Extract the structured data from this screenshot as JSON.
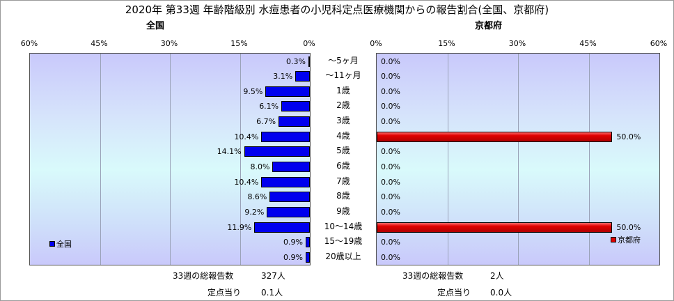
{
  "title": "2020年 第33週 年齢階級別 水痘患者の小児科定点医療機関からの報告割合(全国、京都府)",
  "colors": {
    "national": "#0000ee",
    "kyoto": "#e00000"
  },
  "chart_data": [
    {
      "type": "bar",
      "orientation": "horizontal-reversed",
      "title": "全国",
      "categories": [
        "～5ヶ月",
        "～11ヶ月",
        "1歳",
        "2歳",
        "3歳",
        "4歳",
        "5歳",
        "6歳",
        "7歳",
        "8歳",
        "9歳",
        "10～14歳",
        "15～19歳",
        "20歳以上"
      ],
      "series": [
        {
          "name": "全国",
          "values": [
            0.3,
            3.1,
            9.5,
            6.1,
            6.7,
            10.4,
            14.1,
            8.0,
            10.4,
            8.6,
            9.2,
            11.9,
            0.9,
            0.9
          ]
        }
      ],
      "value_labels": [
        "0.3%",
        "3.1%",
        "9.5%",
        "6.1%",
        "6.7%",
        "10.4%",
        "14.1%",
        "8.0%",
        "10.4%",
        "8.6%",
        "9.2%",
        "11.9%",
        "0.9%",
        "0.9%"
      ],
      "xlim": [
        0,
        60
      ],
      "xticks": [
        "60%",
        "45%",
        "30%",
        "15%",
        "0%"
      ],
      "grid": true,
      "legend": "bottom-left"
    },
    {
      "type": "bar",
      "orientation": "horizontal",
      "title": "京都府",
      "categories": [
        "～5ヶ月",
        "～11ヶ月",
        "1歳",
        "2歳",
        "3歳",
        "4歳",
        "5歳",
        "6歳",
        "7歳",
        "8歳",
        "9歳",
        "10～14歳",
        "15～19歳",
        "20歳以上"
      ],
      "series": [
        {
          "name": "京都府",
          "values": [
            0,
            0,
            0,
            0,
            0,
            50,
            0,
            0,
            0,
            0,
            0,
            50,
            0,
            0
          ]
        }
      ],
      "value_labels": [
        "0.0%",
        "0.0%",
        "0.0%",
        "0.0%",
        "0.0%",
        "50.0%",
        "0.0%",
        "0.0%",
        "0.0%",
        "0.0%",
        "0.0%",
        "50.0%",
        "0.0%",
        "0.0%"
      ],
      "xlim": [
        0,
        60
      ],
      "xticks": [
        "0%",
        "15%",
        "30%",
        "45%",
        "60%"
      ],
      "grid": true,
      "legend": "bottom-right"
    }
  ],
  "footer": {
    "national": {
      "total_label": "33週の総報告数",
      "total_value": "327人",
      "per_label": "定点当り",
      "per_value": "0.1人"
    },
    "kyoto": {
      "total_label": "33週の総報告数",
      "total_value": "2人",
      "per_label": "定点当り",
      "per_value": "0.0人"
    }
  }
}
